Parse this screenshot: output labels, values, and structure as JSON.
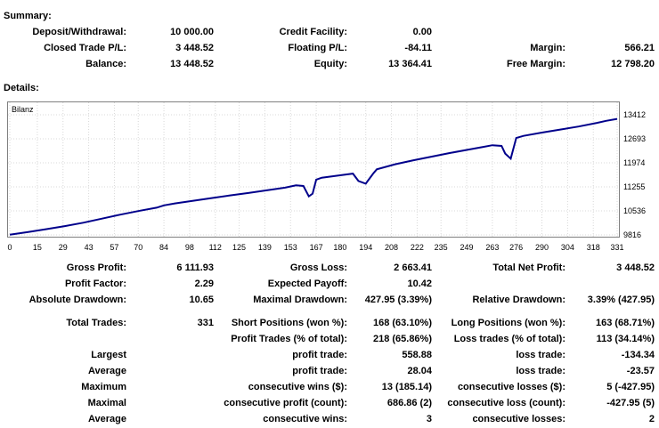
{
  "summary": {
    "heading": "Summary:",
    "deposit_label": "Deposit/Withdrawal:",
    "deposit_value": "10 000.00",
    "credit_label": "Credit Facility:",
    "credit_value": "0.00",
    "closed_label": "Closed Trade P/L:",
    "closed_value": "3 448.52",
    "floating_label": "Floating P/L:",
    "floating_value": "-84.11",
    "margin_label": "Margin:",
    "margin_value": "566.21",
    "balance_label": "Balance:",
    "balance_value": "13 448.52",
    "equity_label": "Equity:",
    "equity_value": "13 364.41",
    "free_margin_label": "Free Margin:",
    "free_margin_value": "12 798.20"
  },
  "details_heading": "Details:",
  "chart_data": {
    "type": "line",
    "title": "Bilanz",
    "y_ticks": [
      "13412",
      "12693",
      "11974",
      "11255",
      "10536",
      "9816"
    ],
    "x_ticks": [
      "0",
      "15",
      "29",
      "43",
      "57",
      "70",
      "84",
      "98",
      "112",
      "125",
      "139",
      "153",
      "167",
      "180",
      "194",
      "208",
      "222",
      "235",
      "249",
      "263",
      "276",
      "290",
      "304",
      "318",
      "331"
    ],
    "xlim": [
      0,
      331
    ],
    "ylim": [
      9816,
      13412
    ],
    "grid": true,
    "line_color": "#00008b",
    "series": [
      {
        "x": [
          0,
          10,
          20,
          30,
          40,
          50,
          60,
          70,
          80,
          84,
          90,
          100,
          110,
          120,
          130,
          140,
          150,
          156,
          160,
          163,
          165,
          167,
          170,
          180,
          187,
          190,
          194,
          198,
          200,
          210,
          220,
          230,
          240,
          250,
          258,
          263,
          268,
          270,
          273,
          276,
          280,
          290,
          300,
          310,
          320,
          325,
          331
        ],
        "values": [
          9820,
          9900,
          9990,
          10080,
          10180,
          10300,
          10420,
          10530,
          10630,
          10700,
          10760,
          10840,
          10920,
          11000,
          11070,
          11150,
          11230,
          11300,
          11280,
          10970,
          11050,
          11470,
          11530,
          11600,
          11650,
          11430,
          11350,
          11650,
          11780,
          11930,
          12050,
          12160,
          12270,
          12370,
          12450,
          12500,
          12480,
          12250,
          12100,
          12720,
          12780,
          12880,
          12970,
          13060,
          13170,
          13230,
          13290
        ]
      }
    ]
  },
  "stats": {
    "gross_profit_label": "Gross Profit:",
    "gross_profit_value": "6 111.93",
    "gross_loss_label": "Gross Loss:",
    "gross_loss_value": "2 663.41",
    "total_net_label": "Total Net Profit:",
    "total_net_value": "3 448.52",
    "profit_factor_label": "Profit Factor:",
    "profit_factor_value": "2.29",
    "expected_label": "Expected Payoff:",
    "expected_value": "10.42",
    "abs_dd_label": "Absolute Drawdown:",
    "abs_dd_value": "10.65",
    "max_dd_label": "Maximal Drawdown:",
    "max_dd_value": "427.95 (3.39%)",
    "rel_dd_label": "Relative Drawdown:",
    "rel_dd_value": "3.39% (427.95)",
    "total_trades_label": "Total Trades:",
    "total_trades_value": "331",
    "short_label": "Short Positions (won %):",
    "short_value": "168 (63.10%)",
    "long_label": "Long Positions (won %):",
    "long_value": "163 (68.71%)",
    "profit_trades_label": "Profit Trades (% of total):",
    "profit_trades_value": "218 (65.86%)",
    "loss_trades_label": "Loss trades (% of total):",
    "loss_trades_value": "113 (34.14%)",
    "largest_label": "Largest",
    "largest_profit_label": "profit trade:",
    "largest_profit_value": "558.88",
    "largest_loss_label": "loss trade:",
    "largest_loss_value": "-134.34",
    "average_label": "Average",
    "average_profit_label": "profit trade:",
    "average_profit_value": "28.04",
    "average_loss_label": "loss trade:",
    "average_loss_value": "-23.57",
    "maximum_label": "Maximum",
    "max_wins_label": "consecutive wins ($):",
    "max_wins_value": "13 (185.14)",
    "max_losses_label": "consecutive losses ($):",
    "max_losses_value": "5 (-427.95)",
    "maximal_label": "Maximal",
    "maximal_profit_label": "consecutive profit (count):",
    "maximal_profit_value": "686.86 (2)",
    "maximal_loss_label": "consecutive loss (count):",
    "maximal_loss_value": "-427.95 (5)",
    "average2_label": "Average",
    "avg_wins_label": "consecutive wins:",
    "avg_wins_value": "3",
    "avg_losses_label": "consecutive losses:",
    "avg_losses_value": "2"
  }
}
